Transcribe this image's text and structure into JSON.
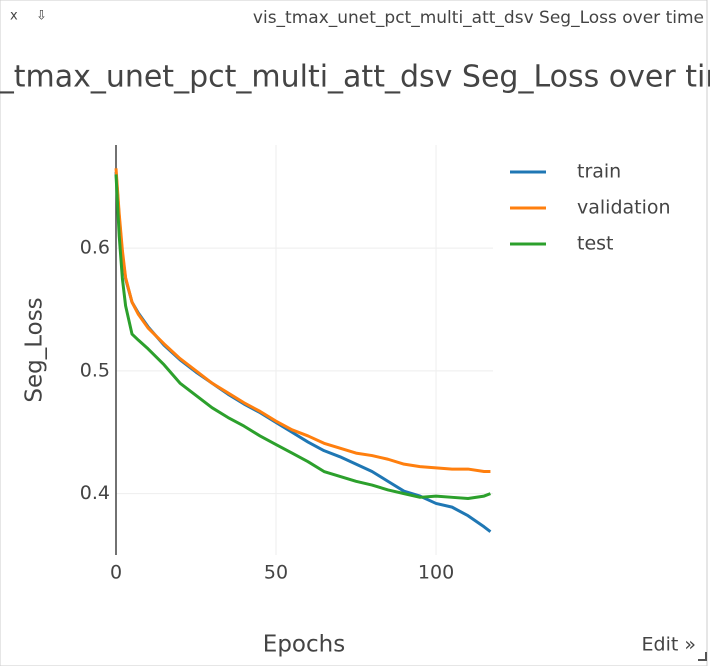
{
  "window": {
    "close": "x",
    "download": "⇩",
    "title": "vis_tmax_unet_pct_multi_att_dsv Seg_Loss over time",
    "edit": "Edit »"
  },
  "chart_data": {
    "type": "line",
    "title": "vis_tmax_unet_pct_multi_att_dsv Seg_Loss over time",
    "x_label": "Epochs",
    "y_label": "Seg_Loss",
    "x": [
      0,
      1,
      2,
      3,
      5,
      7,
      10,
      15,
      20,
      25,
      30,
      35,
      40,
      45,
      50,
      55,
      60,
      65,
      70,
      75,
      80,
      85,
      90,
      95,
      100,
      105,
      110,
      115,
      117
    ],
    "series": [
      {
        "name": "train",
        "color": "#1f77b4",
        "values": [
          0.662,
          0.625,
          0.595,
          0.575,
          0.556,
          0.547,
          0.536,
          0.521,
          0.509,
          0.499,
          0.49,
          0.481,
          0.473,
          0.466,
          0.458,
          0.45,
          0.442,
          0.435,
          0.43,
          0.424,
          0.418,
          0.41,
          0.402,
          0.398,
          0.392,
          0.389,
          0.382,
          0.373,
          0.369
        ]
      },
      {
        "name": "validation",
        "color": "#ff7f0e",
        "values": [
          0.665,
          0.628,
          0.598,
          0.576,
          0.556,
          0.546,
          0.535,
          0.522,
          0.51,
          0.5,
          0.49,
          0.482,
          0.474,
          0.467,
          0.459,
          0.452,
          0.447,
          0.441,
          0.437,
          0.433,
          0.431,
          0.428,
          0.424,
          0.422,
          0.421,
          0.42,
          0.42,
          0.418,
          0.418
        ]
      },
      {
        "name": "test",
        "color": "#2ca02c",
        "values": [
          0.66,
          0.61,
          0.575,
          0.553,
          0.53,
          0.525,
          0.518,
          0.505,
          0.49,
          0.48,
          0.47,
          0.462,
          0.455,
          0.447,
          0.44,
          0.433,
          0.426,
          0.418,
          0.414,
          0.41,
          0.407,
          0.403,
          0.4,
          0.397,
          0.398,
          0.397,
          0.396,
          0.398,
          0.4
        ]
      }
    ],
    "xlim": [
      0,
      117.8
    ],
    "ylim": [
      0.35,
      0.684
    ],
    "xticks": [
      0,
      50,
      100
    ],
    "yticks": [
      0.4,
      0.5,
      0.6
    ],
    "grid": true,
    "legend": "top-right"
  }
}
